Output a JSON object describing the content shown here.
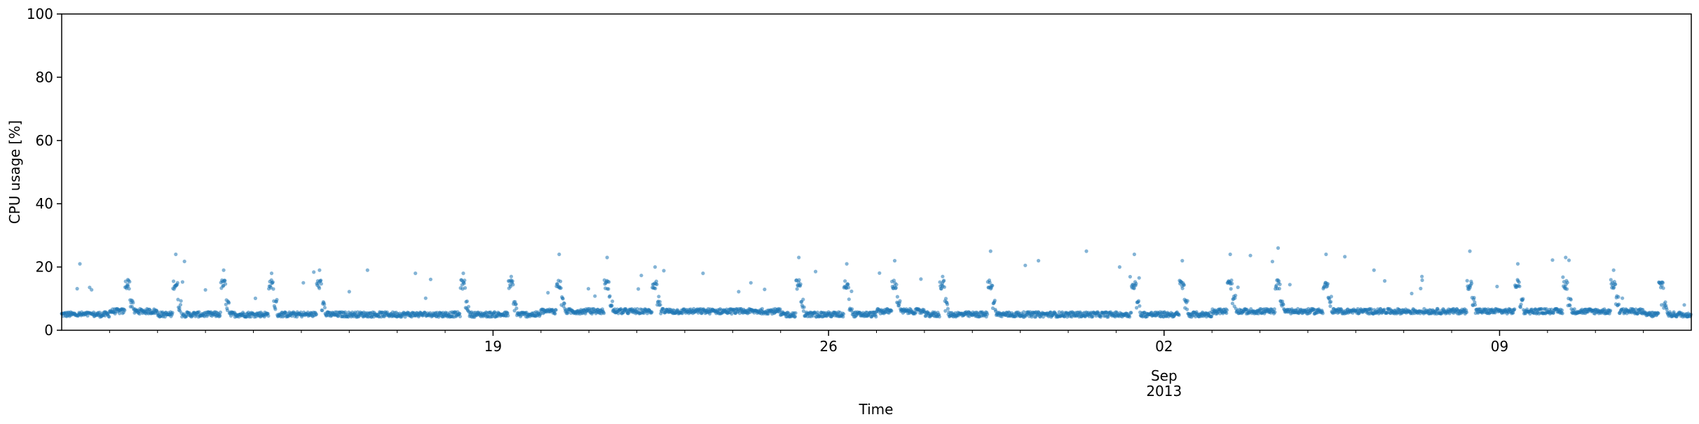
{
  "chart_data": {
    "type": "scatter",
    "title": "",
    "xlabel": "Time",
    "ylabel": "CPU usage [%]",
    "xlim": [
      "2013-08-10",
      "2013-09-13"
    ],
    "ylim": [
      0,
      100
    ],
    "y_ticks": [
      0,
      20,
      40,
      60,
      80,
      100
    ],
    "x_major_ticks": [
      {
        "date": "2013-08-19",
        "label": "19"
      },
      {
        "date": "2013-08-26",
        "label": "26"
      },
      {
        "date": "2013-09-02",
        "label": "02",
        "sublabel_1": "Sep",
        "sublabel_2": "2013"
      },
      {
        "date": "2013-09-09",
        "label": "09"
      }
    ],
    "x_minor_ticks": "daily",
    "grid": false,
    "legend": "none",
    "marker_color": "#1f77b4",
    "series": [
      {
        "values_summary": "periodic daily pattern: baseline ~5%, daytime ~14-16%, occasional spikes up to ~25%",
        "x": [
          "2013-08-10",
          "2013-08-11",
          "2013-08-12",
          "2013-08-13",
          "2013-08-14",
          "2013-08-15",
          "2013-08-16",
          "2013-08-17",
          "2013-08-18",
          "2013-08-19",
          "2013-08-20",
          "2013-08-21",
          "2013-08-22",
          "2013-08-23",
          "2013-08-24",
          "2013-08-25",
          "2013-08-26",
          "2013-08-27",
          "2013-08-28",
          "2013-08-29",
          "2013-08-30",
          "2013-08-31",
          "2013-09-01",
          "2013-09-02",
          "2013-09-03",
          "2013-09-04",
          "2013-09-05",
          "2013-09-06",
          "2013-09-07",
          "2013-09-08",
          "2013-09-09",
          "2013-09-10",
          "2013-09-11",
          "2013-09-12"
        ],
        "daily_peak": [
          21,
          16,
          24,
          19,
          18,
          19,
          19,
          18,
          18,
          17,
          24,
          23,
          20,
          18,
          15,
          23,
          21,
          22,
          17,
          25,
          22,
          25,
          24,
          22,
          24,
          26,
          24,
          19,
          17,
          25,
          21,
          23,
          19,
          8
        ],
        "daily_baseline": [
          5,
          6,
          5,
          5,
          5,
          5,
          5,
          5,
          5,
          5,
          6,
          6,
          6,
          6,
          6,
          5,
          5,
          6,
          5,
          5,
          5,
          5,
          5,
          5,
          6,
          6,
          6,
          6,
          6,
          6,
          6,
          6,
          6,
          5
        ]
      }
    ]
  }
}
